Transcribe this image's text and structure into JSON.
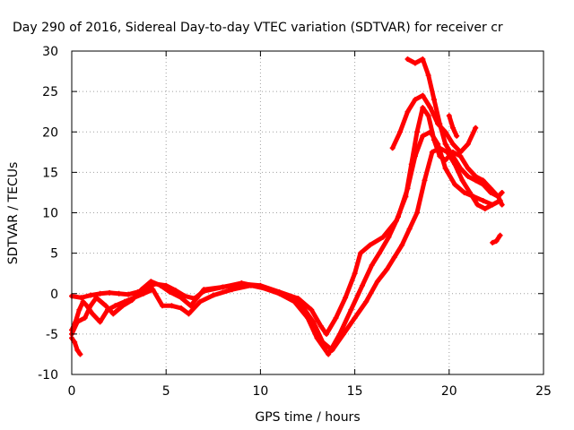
{
  "chart_data": {
    "type": "scatter",
    "title": "Day 290 of 2016, Sidereal Day-to-day VTEC variation (SDTVAR) for receiver cr",
    "xlabel": "GPS time / hours",
    "ylabel": "SDTVAR / TECUs",
    "xlim": [
      0,
      25
    ],
    "ylim": [
      -10,
      30
    ],
    "xticks": [
      0,
      5,
      10,
      15,
      20,
      25
    ],
    "yticks": [
      -10,
      -5,
      0,
      5,
      10,
      15,
      20,
      25,
      30
    ],
    "grid": true,
    "color": "#ff0000",
    "marker": "plus",
    "series": [
      {
        "x": [
          0.0,
          0.5,
          1.0,
          1.5,
          2.0,
          2.5,
          3.0,
          3.5,
          4.0,
          4.4,
          5.0,
          5.5,
          6.0,
          6.5,
          7.0,
          8.0,
          9.0,
          10.0,
          11.0,
          12.0,
          12.7,
          13.2,
          13.5,
          14.0,
          14.5,
          15.0,
          15.3,
          15.8,
          16.5,
          17.2,
          17.7,
          18.0,
          18.3,
          18.6,
          18.9,
          19.2,
          19.5,
          19.8,
          20.2,
          20.6,
          21.0,
          21.4,
          21.8,
          22.2,
          22.6,
          22.8
        ],
        "y": [
          -0.3,
          -0.5,
          -0.2,
          0.0,
          0.1,
          0.0,
          -0.1,
          0.2,
          0.6,
          1.2,
          1.0,
          0.4,
          -0.3,
          -0.6,
          0.3,
          0.8,
          1.2,
          1.0,
          0.2,
          -0.6,
          -2.0,
          -4.0,
          -5.0,
          -3.0,
          -0.5,
          2.5,
          5.0,
          6.0,
          7.0,
          9.0,
          12.0,
          16.0,
          20.0,
          23.0,
          22.0,
          19.0,
          17.0,
          16.5,
          17.5,
          17.0,
          15.5,
          14.5,
          14.0,
          13.0,
          12.0,
          11.0
        ]
      },
      {
        "x": [
          0.0,
          0.3,
          0.7,
          1.0,
          1.3,
          1.8,
          2.2,
          2.7,
          3.2,
          3.7,
          4.2,
          4.7,
          5.2,
          5.8,
          6.3,
          7.0,
          8.0,
          9.0,
          10.0,
          11.0,
          11.8,
          12.5,
          13.0,
          13.6,
          14.2,
          14.8,
          15.4,
          15.9,
          16.3,
          16.8,
          17.3,
          17.8,
          18.2,
          18.6,
          19.0,
          19.4,
          19.8,
          20.3,
          20.8,
          21.3,
          21.8,
          22.3,
          22.7
        ],
        "y": [
          -5.0,
          -3.5,
          -3.0,
          -1.5,
          -0.5,
          -1.5,
          -2.5,
          -1.5,
          -0.8,
          0.5,
          1.5,
          1.0,
          0.2,
          -0.5,
          -1.5,
          0.5,
          0.8,
          1.3,
          0.8,
          0.0,
          -1.0,
          -3.0,
          -5.5,
          -7.5,
          -5.0,
          -2.0,
          1.0,
          3.5,
          5.0,
          7.0,
          9.5,
          13.0,
          17.0,
          19.5,
          20.0,
          18.5,
          15.5,
          13.5,
          12.5,
          12.0,
          11.5,
          11.0,
          11.5
        ]
      },
      {
        "x": [
          0.0,
          0.2,
          0.4,
          0.6,
          0.8,
          1.1,
          1.5,
          1.9,
          2.3,
          2.8,
          3.3,
          3.8,
          4.3,
          4.8,
          5.3,
          5.8,
          6.2,
          6.8,
          7.5,
          8.5,
          9.5,
          10.5,
          11.5,
          12.2,
          12.8,
          13.3,
          13.8,
          14.4,
          15.0,
          15.6,
          16.2,
          16.7,
          17.1,
          17.5,
          17.9,
          18.3,
          18.7,
          19.1,
          19.5,
          19.9,
          20.3,
          20.7,
          21.1,
          21.5,
          21.9,
          22.3,
          22.7
        ],
        "y": [
          -4.5,
          -3.5,
          -2.0,
          -1.0,
          -1.5,
          -2.5,
          -3.5,
          -2.0,
          -1.5,
          -1.0,
          -0.5,
          0.0,
          0.5,
          -1.5,
          -1.5,
          -1.8,
          -2.5,
          -1.0,
          -0.2,
          0.5,
          1.0,
          0.5,
          -0.5,
          -1.5,
          -3.5,
          -6.0,
          -7.0,
          -5.0,
          -3.0,
          -1.0,
          1.5,
          3.0,
          4.5,
          6.0,
          8.0,
          10.0,
          14.0,
          17.5,
          18.0,
          17.5,
          16.0,
          14.0,
          12.5,
          11.0,
          10.5,
          11.0,
          11.5
        ]
      },
      {
        "x": [
          17.0,
          17.4,
          17.8,
          18.2,
          18.6,
          19.0,
          19.4,
          19.8,
          20.2,
          20.6,
          21.0,
          21.4
        ],
        "y": [
          18.0,
          20.0,
          22.5,
          24.0,
          24.5,
          23.0,
          21.0,
          20.0,
          18.5,
          17.5,
          18.5,
          20.5
        ]
      },
      {
        "x": [
          17.8,
          18.2,
          18.6,
          18.9,
          19.2,
          19.5,
          19.8,
          20.2,
          20.6,
          21.0,
          21.4,
          21.8,
          22.2,
          22.6,
          22.8
        ],
        "y": [
          29.0,
          28.5,
          29.0,
          27.0,
          24.0,
          21.0,
          18.5,
          17.0,
          15.5,
          14.5,
          14.0,
          13.5,
          12.5,
          12.0,
          12.5
        ]
      },
      {
        "x": [
          0.0,
          0.15,
          0.3,
          0.45
        ],
        "y": [
          -5.5,
          -6.0,
          -7.0,
          -7.5
        ]
      },
      {
        "x": [
          20.0,
          20.2,
          20.4
        ],
        "y": [
          22.0,
          20.5,
          19.5
        ]
      },
      {
        "x": [
          22.3,
          22.5,
          22.7
        ],
        "y": [
          6.3,
          6.5,
          7.2
        ]
      }
    ]
  }
}
